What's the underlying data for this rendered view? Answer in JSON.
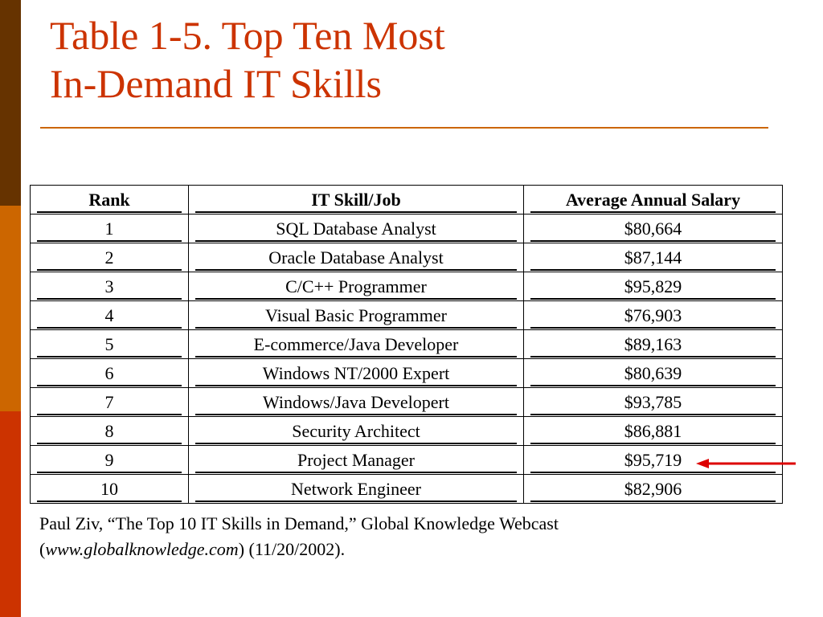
{
  "title": {
    "line1": "Table 1-5. Top Ten Most",
    "line2": "In-Demand IT Skills"
  },
  "table": {
    "headers": {
      "rank": "Rank",
      "skill": "IT Skill/Job",
      "salary": "Average Annual Salary"
    },
    "rows": [
      {
        "rank": "1",
        "skill": "SQL Database Analyst",
        "salary": "$80,664"
      },
      {
        "rank": "2",
        "skill": "Oracle Database Analyst",
        "salary": "$87,144"
      },
      {
        "rank": "3",
        "skill": "C/C++ Programmer",
        "salary": "$95,829"
      },
      {
        "rank": "4",
        "skill": "Visual Basic Programmer",
        "salary": "$76,903"
      },
      {
        "rank": "5",
        "skill": "E-commerce/Java Developer",
        "salary": "$89,163"
      },
      {
        "rank": "6",
        "skill": "Windows NT/2000 Expert",
        "salary": "$80,639"
      },
      {
        "rank": "7",
        "skill": "Windows/Java Developert",
        "salary": "$93,785"
      },
      {
        "rank": "8",
        "skill": "Security Architect",
        "salary": "$86,881"
      },
      {
        "rank": "9",
        "skill": "Project Manager",
        "salary": "$95,719"
      },
      {
        "rank": "10",
        "skill": "Network Engineer",
        "salary": "$82,906"
      }
    ]
  },
  "caption": {
    "line1": "Paul Ziv, “The Top 10 IT Skills in Demand,” Global Knowledge Webcast",
    "open_paren": "(",
    "url": "www.globalknowledge.com",
    "rest": ") (11/20/2002)."
  },
  "colors": {
    "title": "#cc3300",
    "rule": "#cc6600",
    "sidebar_top": "#663300",
    "sidebar_middle": "#cc6600",
    "sidebar_bottom": "#cc3300",
    "arrow": "#dd0000"
  },
  "icons": {
    "arrow": "left-arrow-icon"
  }
}
